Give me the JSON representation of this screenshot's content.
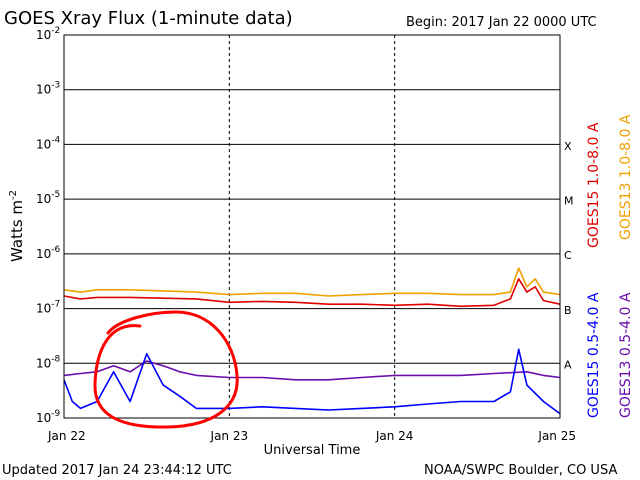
{
  "header": {
    "title": "GOES Xray Flux (1-minute data)",
    "begin": "Begin:  2017 Jan 22 0000 UTC"
  },
  "footer": {
    "updated": "Updated 2017 Jan 24 23:44:12 UTC",
    "credit": "NOAA/SWPC Boulder, CO USA"
  },
  "colors": {
    "goes15_long": "#e00000",
    "goes13_long": "#f0a000",
    "goes15_short": "#0000ff",
    "goes13_short": "#6a0dad",
    "annotation": "#ff0000"
  },
  "annotation": {
    "shape": "hand-drawn circle",
    "around": "Jan 22 afternoon, 1e-9 to 1e-8 range"
  },
  "chart_data": {
    "type": "line",
    "xlabel": "Universal Time",
    "ylabel_main": "Watts m",
    "ylabel_sup": "-2",
    "x_ticks": [
      "Jan 22",
      "Jan 23",
      "Jan 24",
      "Jan 25"
    ],
    "x_range": [
      "2017-01-22",
      "2017-01-25"
    ],
    "y_scale": "log",
    "y_range": [
      1e-09,
      0.01
    ],
    "y_ticks": [
      {
        "base": "10",
        "exp": "-9",
        "value": 1e-09
      },
      {
        "base": "10",
        "exp": "-8",
        "value": 1e-08
      },
      {
        "base": "10",
        "exp": "-7",
        "value": 1e-07
      },
      {
        "base": "10",
        "exp": "-6",
        "value": 1e-06
      },
      {
        "base": "10",
        "exp": "-5",
        "value": 1e-05
      },
      {
        "base": "10",
        "exp": "-4",
        "value": 0.0001
      },
      {
        "base": "10",
        "exp": "-3",
        "value": 0.001
      },
      {
        "base": "10",
        "exp": "-2",
        "value": 0.01
      }
    ],
    "flare_classes": [
      {
        "label": "A",
        "value": 1e-08
      },
      {
        "label": "B",
        "value": 1e-07
      },
      {
        "label": "C",
        "value": 1e-06
      },
      {
        "label": "M",
        "value": 1e-05
      },
      {
        "label": "X",
        "value": 0.0001
      }
    ],
    "legend": [
      "GOES15 1.0-8.0 A",
      "GOES13 1.0-8.0 A",
      "GOES15 0.5-4.0 A",
      "GOES13 0.5-4.0 A"
    ],
    "grid": "horizontal lines at each decade; dashed vertical lines at day boundaries",
    "series": [
      {
        "name": "GOES13 1.0-8.0 A",
        "color_key": "goes13_long",
        "x": [
          0,
          0.1,
          0.2,
          0.4,
          0.6,
          0.8,
          1.0,
          1.2,
          1.4,
          1.6,
          1.8,
          2.0,
          2.2,
          2.4,
          2.6,
          2.7,
          2.75,
          2.8,
          2.85,
          2.9,
          3.0
        ],
        "y": [
          2.2e-07,
          2e-07,
          2.2e-07,
          2.2e-07,
          2.1e-07,
          2e-07,
          1.8e-07,
          1.9e-07,
          1.9e-07,
          1.7e-07,
          1.8e-07,
          1.9e-07,
          1.9e-07,
          1.8e-07,
          1.8e-07,
          2e-07,
          5.5e-07,
          2.5e-07,
          3.5e-07,
          2e-07,
          1.8e-07
        ]
      },
      {
        "name": "GOES15 1.0-8.0 A",
        "color_key": "goes15_long",
        "x": [
          0,
          0.1,
          0.2,
          0.4,
          0.6,
          0.8,
          1.0,
          1.2,
          1.4,
          1.6,
          1.8,
          2.0,
          2.2,
          2.4,
          2.6,
          2.7,
          2.75,
          2.8,
          2.85,
          2.9,
          3.0
        ],
        "y": [
          1.7e-07,
          1.5e-07,
          1.6e-07,
          1.6e-07,
          1.55e-07,
          1.5e-07,
          1.3e-07,
          1.35e-07,
          1.3e-07,
          1.2e-07,
          1.2e-07,
          1.15e-07,
          1.2e-07,
          1.1e-07,
          1.15e-07,
          1.5e-07,
          3.5e-07,
          2e-07,
          2.5e-07,
          1.4e-07,
          1.2e-07
        ]
      },
      {
        "name": "GOES13 0.5-4.0 A",
        "color_key": "goes13_short",
        "x": [
          0,
          0.1,
          0.2,
          0.3,
          0.4,
          0.5,
          0.6,
          0.7,
          0.8,
          1.0,
          1.2,
          1.4,
          1.6,
          1.8,
          2.0,
          2.2,
          2.4,
          2.6,
          2.8,
          2.9,
          3.0
        ],
        "y": [
          6e-09,
          6.5e-09,
          7e-09,
          9e-09,
          7e-09,
          1.1e-08,
          9e-09,
          7e-09,
          6e-09,
          5.5e-09,
          5.5e-09,
          5e-09,
          5e-09,
          5.5e-09,
          6e-09,
          6e-09,
          6e-09,
          6.5e-09,
          7e-09,
          6e-09,
          5.5e-09
        ]
      },
      {
        "name": "GOES15 0.5-4.0 A",
        "color_key": "goes15_short",
        "x": [
          0,
          0.05,
          0.1,
          0.2,
          0.3,
          0.4,
          0.5,
          0.6,
          0.7,
          0.8,
          1.0,
          1.2,
          1.4,
          1.6,
          1.8,
          2.0,
          2.2,
          2.4,
          2.6,
          2.7,
          2.75,
          2.8,
          2.9,
          3.0
        ],
        "y": [
          5e-09,
          2e-09,
          1.5e-09,
          2e-09,
          7e-09,
          2e-09,
          1.5e-08,
          4e-09,
          2.5e-09,
          1.5e-09,
          1.5e-09,
          1.6e-09,
          1.5e-09,
          1.4e-09,
          1.5e-09,
          1.6e-09,
          1.8e-09,
          2e-09,
          2e-09,
          3e-09,
          1.8e-08,
          4e-09,
          2e-09,
          1.2e-09
        ]
      }
    ]
  }
}
